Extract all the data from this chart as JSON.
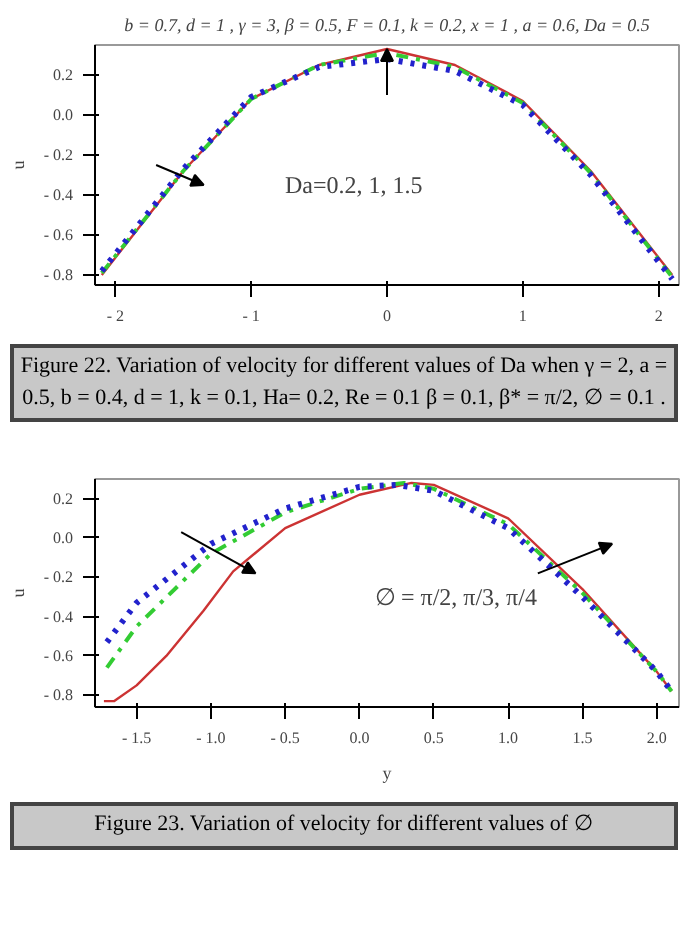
{
  "chart_data": [
    {
      "type": "line",
      "title": "b = 0.7, d = 1 , γ = 3, β = 0.5, F = 0.1, k = 0.2, x = 1 , a = 0.6, Da = 0.5",
      "ylabel": "u",
      "xlim": [
        -2.15,
        2.15
      ],
      "ylim": [
        -0.85,
        0.35
      ],
      "xticks": [
        {
          "value": -2,
          "label": "- 2"
        },
        {
          "value": -1,
          "label": "- 1"
        },
        0,
        1,
        2
      ],
      "yticks": [
        {
          "value": -0.8,
          "label": "- 0.8"
        },
        {
          "value": -0.6,
          "label": "- 0.6"
        },
        {
          "value": -0.4,
          "label": "- 0.4"
        },
        {
          "value": -0.2,
          "label": "- 0.2"
        },
        {
          "value": 0,
          "label": "0.0"
        },
        0.2
      ],
      "x": [
        -2.1,
        -1.5,
        -1.0,
        -0.5,
        0,
        0.5,
        1.0,
        1.5,
        2.1
      ],
      "series": [
        {
          "color": "#cc3333",
          "line_style": "solid",
          "values": [
            -0.8,
            -0.28,
            0.08,
            0.25,
            0.33,
            0.25,
            0.07,
            -0.28,
            -0.8
          ]
        },
        {
          "color": "#33cc33",
          "line_style": "dashed",
          "values": [
            -0.79,
            -0.28,
            0.08,
            0.25,
            0.31,
            0.24,
            0.06,
            -0.29,
            -0.81
          ]
        },
        {
          "color": "#2222cc",
          "line_style": "dotted",
          "values": [
            -0.78,
            -0.27,
            0.09,
            0.24,
            0.28,
            0.22,
            0.05,
            -0.3,
            -0.82
          ]
        }
      ],
      "annotations": [
        "Da=0.2, 1, 1.5",
        "Figure 22. Variation of velocity for different values of Da when γ = 2, a = 0.5, b = 0.4, d = 1, k = 0.1, Ha= 0.2, Re = 0.1 β = 0.1, β* = π/2, ∅ = 0.1 ."
      ]
    },
    {
      "type": "line",
      "xlabel": "y",
      "ylabel": "u",
      "xlim": [
        -1.78,
        2.15
      ],
      "ylim": [
        -0.86,
        0.3
      ],
      "xticks": [
        {
          "value": -1.5,
          "label": "- 1.5"
        },
        {
          "value": -1.0,
          "label": "- 1.0"
        },
        {
          "value": -0.5,
          "label": "- 0.5"
        },
        {
          "value": 0,
          "label": "0.0"
        },
        0.5,
        {
          "value": 1,
          "label": "1.0"
        },
        1.5,
        {
          "value": 2,
          "label": "2.0"
        }
      ],
      "yticks": [
        {
          "value": -0.8,
          "label": "- 0.8"
        },
        {
          "value": -0.6,
          "label": "- 0.6"
        },
        {
          "value": -0.4,
          "label": "- 0.4"
        },
        {
          "value": -0.2,
          "label": "- 0.2"
        },
        {
          "value": 0,
          "label": "0.0"
        },
        0.2
      ],
      "series": [
        {
          "color": "#cc3333",
          "line_style": "solid",
          "x": [
            -1.72,
            -1.65,
            -1.5,
            -1.3,
            -1.05,
            -0.85,
            -0.5,
            0,
            0.35,
            0.5,
            1.0,
            1.5,
            2.0,
            2.1
          ],
          "values": [
            -0.83,
            -0.83,
            -0.75,
            -0.6,
            -0.37,
            -0.17,
            0.05,
            0.22,
            0.28,
            0.27,
            0.1,
            -0.26,
            -0.68,
            -0.78
          ]
        },
        {
          "color": "#33cc33",
          "line_style": "dashed",
          "x": [
            -1.7,
            -1.5,
            -1.0,
            -0.5,
            0,
            0.3,
            0.5,
            1.0,
            1.5,
            2.0,
            2.1
          ],
          "values": [
            -0.66,
            -0.45,
            -0.08,
            0.13,
            0.25,
            0.28,
            0.25,
            0.07,
            -0.28,
            -0.68,
            -0.78
          ]
        },
        {
          "color": "#2222cc",
          "line_style": "dotted",
          "x": [
            -1.7,
            -1.5,
            -1.0,
            -0.5,
            0,
            0.25,
            0.5,
            1.0,
            1.5,
            2.0,
            2.1
          ],
          "values": [
            -0.53,
            -0.33,
            -0.03,
            0.15,
            0.26,
            0.27,
            0.24,
            0.05,
            -0.3,
            -0.68,
            -0.78
          ]
        }
      ],
      "annotations": [
        "∅ = π/2, π/3, π/4",
        "Figure 23. Variation of velocity for different values of ∅"
      ]
    }
  ]
}
